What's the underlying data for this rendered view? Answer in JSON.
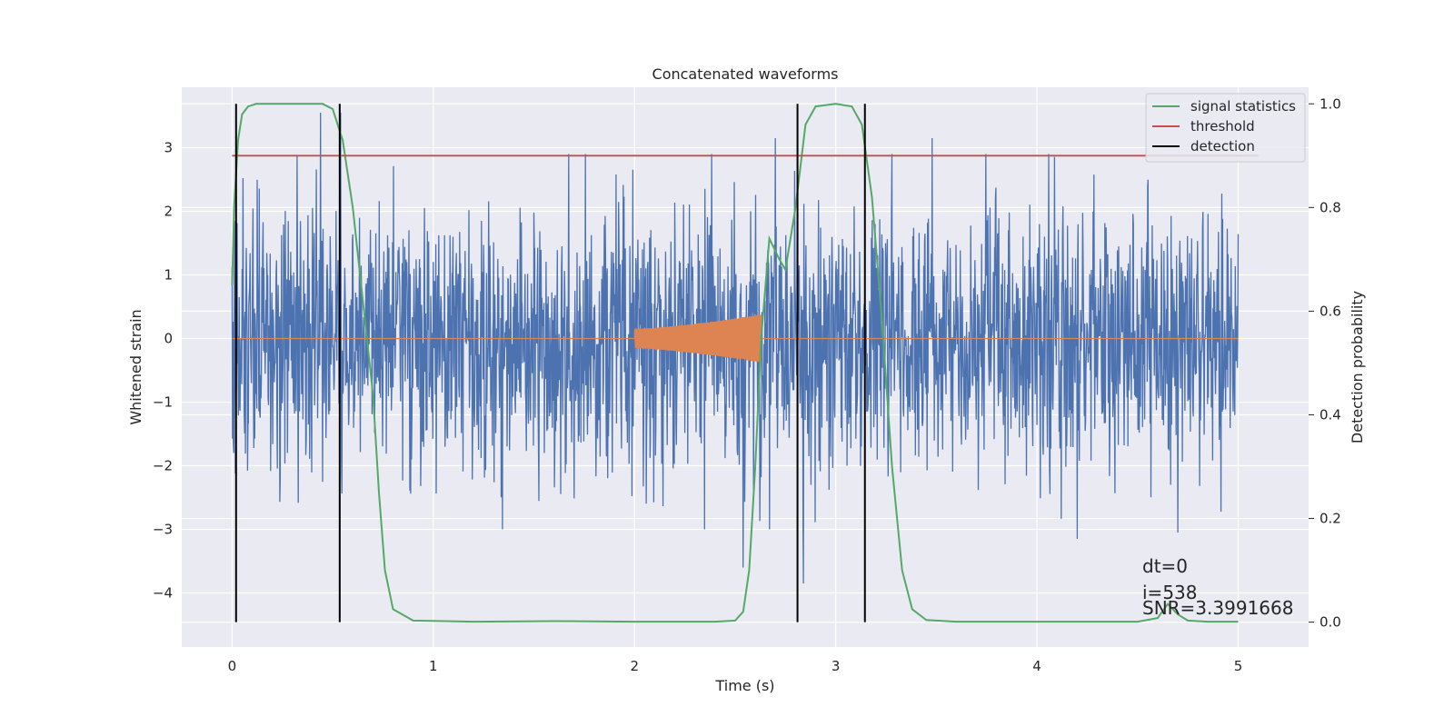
{
  "chart_data": {
    "type": "line",
    "title": "Concatenated waveforms",
    "xlabel": "Time (s)",
    "ylabel": "Whitened strain",
    "ylabel_right": "Detection probability",
    "xlim": [
      -0.25,
      5.35
    ],
    "ylim": [
      -4.85,
      3.95
    ],
    "ylim_right": [
      -0.048,
      1.032
    ],
    "xticks": [
      0,
      1,
      2,
      3,
      4,
      5
    ],
    "xtick_labels": [
      "0",
      "1",
      "2",
      "3",
      "4",
      "5"
    ],
    "yticks": [
      -4,
      -3,
      -2,
      -1,
      0,
      1,
      2,
      3
    ],
    "ytick_labels": [
      "−4",
      "−3",
      "−2",
      "−1",
      "0",
      "1",
      "2",
      "3"
    ],
    "yticks_right": [
      0.0,
      0.2,
      0.4,
      0.6,
      0.8,
      1.0
    ],
    "ytick_labels_right": [
      "0.0",
      "0.2",
      "0.4",
      "0.6",
      "0.8",
      "1.0"
    ],
    "grid": true,
    "legend_position": "top-right",
    "colors": {
      "background": "#eaeaf2",
      "grid": "#ffffff",
      "strain": "#4c72b0",
      "injection": "#dd8452",
      "signal_statistics": "#55a868",
      "threshold": "#c44e52",
      "detection": "#000000"
    },
    "series": [
      {
        "name": "whitened strain (noise)",
        "axis": "left",
        "x_range": [
          0,
          5
        ],
        "typical_amplitude": 1.0,
        "notable_peaks": [
          {
            "x": 0.44,
            "y": 3.55
          },
          {
            "x": 0.54,
            "y": 3.55
          },
          {
            "x": 2.7,
            "y": 3.15
          },
          {
            "x": 3.48,
            "y": 3.15
          },
          {
            "x": 2.54,
            "y": -3.6
          },
          {
            "x": 2.84,
            "y": -3.85
          },
          {
            "x": 4.2,
            "y": -3.15
          },
          {
            "x": 4.7,
            "y": -3.05
          }
        ]
      },
      {
        "name": "injected waveform",
        "axis": "left",
        "x_range": [
          0,
          5
        ],
        "chirp": {
          "start": 2.0,
          "end": 2.63,
          "amplitude_start": 0.15,
          "amplitude_end": 0.38
        }
      },
      {
        "name": "signal statistics",
        "axis": "right",
        "x": [
          0,
          0.01,
          0.03,
          0.05,
          0.08,
          0.12,
          0.2,
          0.35,
          0.45,
          0.5,
          0.55,
          0.6,
          0.65,
          0.7,
          0.73,
          0.76,
          0.8,
          0.9,
          1.2,
          1.6,
          2.0,
          2.4,
          2.5,
          2.54,
          2.57,
          2.6,
          2.63,
          2.67,
          2.72,
          2.75,
          2.8,
          2.85,
          2.9,
          3.0,
          3.08,
          3.13,
          3.18,
          3.23,
          3.28,
          3.33,
          3.38,
          3.45,
          3.6,
          4.0,
          4.5,
          4.6,
          4.65,
          4.7,
          4.75,
          4.85,
          5.0
        ],
        "y": [
          0.65,
          0.8,
          0.93,
          0.98,
          0.995,
          1.0,
          1.0,
          1.0,
          1.0,
          0.99,
          0.93,
          0.8,
          0.62,
          0.44,
          0.25,
          0.1,
          0.025,
          0.003,
          0.001,
          0.002,
          0.001,
          0.001,
          0.003,
          0.02,
          0.1,
          0.3,
          0.55,
          0.74,
          0.7,
          0.68,
          0.8,
          0.96,
          0.995,
          1.0,
          0.995,
          0.96,
          0.82,
          0.58,
          0.3,
          0.1,
          0.025,
          0.004,
          0.001,
          0.001,
          0.001,
          0.008,
          0.035,
          0.015,
          0.003,
          0.001,
          0.001
        ]
      },
      {
        "name": "threshold",
        "axis": "right",
        "x": [
          0,
          5.1
        ],
        "y": [
          0.9,
          0.9
        ]
      },
      {
        "name": "detection",
        "axis": "right",
        "type": "vertical_lines",
        "x": [
          0.02,
          0.535,
          2.81,
          3.145
        ],
        "y_range": [
          0.0,
          1.0
        ]
      }
    ],
    "legend": [
      "signal statistics",
      "threshold",
      "detection"
    ],
    "annotations": [
      "dt=0",
      "i=538",
      "SNR=3.3991668"
    ]
  }
}
